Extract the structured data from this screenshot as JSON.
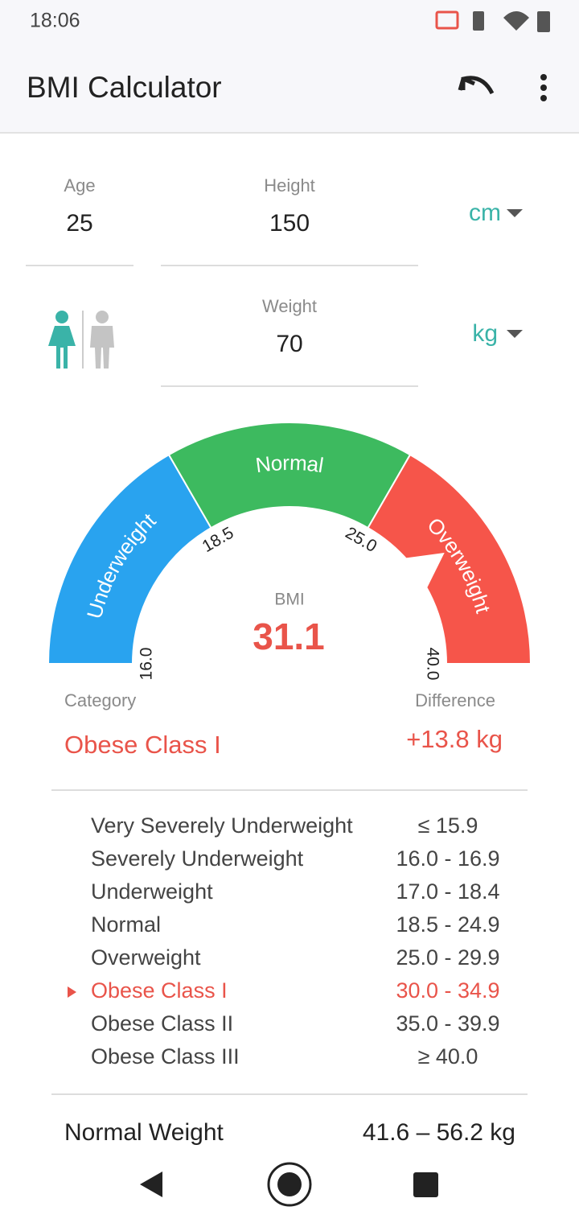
{
  "status": {
    "time": "18:06"
  },
  "appbar": {
    "title": "BMI Calculator"
  },
  "inputs": {
    "age": {
      "label": "Age",
      "value": "25"
    },
    "height": {
      "label": "Height",
      "value": "150",
      "unit": "cm"
    },
    "weight": {
      "label": "Weight",
      "value": "70",
      "unit": "kg"
    }
  },
  "gauge": {
    "sections": [
      {
        "label": "Underweight",
        "color": "#29a3ef"
      },
      {
        "label": "Normal",
        "color": "#3dba5f"
      },
      {
        "label": "Overweight",
        "color": "#f6554a"
      }
    ],
    "thresholds": [
      "16.0",
      "18.5",
      "25.0",
      "40.0"
    ],
    "bmi_label": "BMI",
    "bmi": "31.1"
  },
  "result": {
    "category_label": "Category",
    "category": "Obese Class I",
    "difference_label": "Difference",
    "difference": "+13.8 kg"
  },
  "table": {
    "rows": [
      [
        "Very Severely Underweight",
        "≤ 15.9"
      ],
      [
        "Severely Underweight",
        "16.0 - 16.9"
      ],
      [
        "Underweight",
        "17.0 - 18.4"
      ],
      [
        "Normal",
        "18.5 - 24.9"
      ],
      [
        "Overweight",
        "25.0 - 29.9"
      ],
      [
        "Obese Class I",
        "30.0 - 34.9"
      ],
      [
        "Obese Class II",
        "35.0 - 39.9"
      ],
      [
        "Obese Class III",
        "≥ 40.0"
      ]
    ]
  },
  "footer": {
    "label": "Normal Weight",
    "value": "41.6 – 56.2 kg"
  }
}
